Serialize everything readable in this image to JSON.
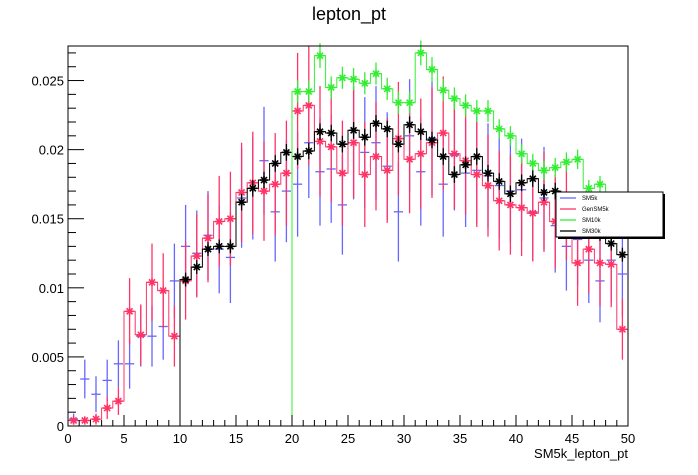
{
  "chart_data": {
    "type": "line",
    "title": "lepton_pt",
    "xlabel": "SM5k_lepton_pt",
    "ylabel": "",
    "xlim": [
      0,
      50
    ],
    "ylim": [
      0,
      0.0275
    ],
    "x_ticks": [
      0,
      5,
      10,
      15,
      20,
      25,
      30,
      35,
      40,
      45,
      50
    ],
    "y_ticks": [
      0,
      0.005,
      0.01,
      0.015,
      0.02,
      0.025
    ],
    "x_tick_labels": [
      "0",
      "5",
      "10",
      "15",
      "20",
      "25",
      "30",
      "35",
      "40",
      "45",
      "50"
    ],
    "y_tick_labels": [
      "0",
      "0.005",
      "0.01",
      "0.015",
      "0.02",
      "0.025"
    ],
    "grid": false,
    "legend": "right",
    "bin_width": 1,
    "series": [
      {
        "name": "SM5k",
        "color": "#6666ff",
        "style": "crosses",
        "values": [
          0.0005,
          0.0034,
          0.0023,
          0.0033,
          0.0045,
          0.0045,
          0.0065,
          0.0065,
          0.0072,
          0.0105,
          0.013,
          0.0125,
          0.0138,
          0.0128,
          0.0122,
          0.0165,
          0.0172,
          0.0192,
          0.0155,
          0.017,
          0.0175,
          0.0205,
          0.0184,
          0.0186,
          0.016,
          0.0205,
          0.0198,
          0.0205,
          0.0188,
          0.0155,
          0.021,
          0.0184,
          0.0208,
          0.0175,
          0.0196,
          0.0183,
          0.0185,
          0.0181,
          0.0174,
          0.017,
          0.0171,
          0.0155,
          0.0165,
          0.0145,
          0.013,
          0.0135,
          0.012,
          0.0105,
          0.012,
          0.011
        ],
        "errors": [
          0.0004,
          0.0014,
          0.0013,
          0.0015,
          0.0017,
          0.0018,
          0.0022,
          0.0022,
          0.0024,
          0.0027,
          0.003,
          0.0031,
          0.0032,
          0.0032,
          0.0033,
          0.0036,
          0.0037,
          0.0039,
          0.0036,
          0.0037,
          0.0038,
          0.004,
          0.0039,
          0.0039,
          0.0036,
          0.0041,
          0.004,
          0.0041,
          0.0039,
          0.0036,
          0.0041,
          0.0039,
          0.0041,
          0.0038,
          0.004,
          0.0039,
          0.0039,
          0.0038,
          0.0038,
          0.0037,
          0.0037,
          0.0035,
          0.0037,
          0.0034,
          0.0032,
          0.0033,
          0.0031,
          0.003,
          0.0031,
          0.003
        ]
      },
      {
        "name": "GenSM5k",
        "color": "#ff3366",
        "style": "stars",
        "values": [
          0.0004,
          0.0004,
          0.0005,
          0.0013,
          0.0018,
          0.0083,
          0.0066,
          0.0104,
          0.0098,
          0.0065,
          0.0105,
          0.0123,
          0.0136,
          0.0148,
          0.015,
          0.0169,
          0.0176,
          0.017,
          0.0175,
          0.0183,
          0.0228,
          0.0232,
          0.0206,
          0.0202,
          0.0183,
          0.0205,
          0.0182,
          0.0195,
          0.0185,
          0.0208,
          0.0193,
          0.0197,
          0.0205,
          0.0212,
          0.0197,
          0.0192,
          0.0182,
          0.0174,
          0.0163,
          0.016,
          0.0158,
          0.0154,
          0.0162,
          0.0148,
          0.0155,
          0.0118,
          0.0128,
          0.0118,
          0.0117,
          0.007
        ],
        "errors": [
          0.0003,
          0.0003,
          0.0004,
          0.0008,
          0.001,
          0.0024,
          0.0022,
          0.0028,
          0.0027,
          0.0022,
          0.0028,
          0.003,
          0.0032,
          0.0033,
          0.0034,
          0.0036,
          0.0037,
          0.0036,
          0.0037,
          0.0038,
          0.0042,
          0.0043,
          0.004,
          0.004,
          0.0038,
          0.004,
          0.0038,
          0.0039,
          0.0038,
          0.0041,
          0.0039,
          0.004,
          0.004,
          0.0041,
          0.004,
          0.0039,
          0.0038,
          0.0037,
          0.0036,
          0.0036,
          0.0035,
          0.0035,
          0.0036,
          0.0034,
          0.0035,
          0.0031,
          0.0032,
          0.0031,
          0.0031,
          0.0022
        ]
      },
      {
        "name": "SM10k",
        "color": "#33ee33",
        "style": "stars",
        "values": [
          0,
          0,
          0,
          0,
          0,
          0,
          0,
          0,
          0,
          0,
          0,
          0,
          0,
          0,
          0,
          0,
          0,
          0,
          0,
          0,
          0.0242,
          0.0242,
          0.0268,
          0.0245,
          0.0252,
          0.0251,
          0.0248,
          0.0255,
          0.0244,
          0.0234,
          0.0234,
          0.027,
          0.0258,
          0.0243,
          0.0237,
          0.0232,
          0.0228,
          0.0228,
          0.0215,
          0.021,
          0.0197,
          0.019,
          0.0185,
          0.0187,
          0.0191,
          0.0193,
          0.0172,
          0.0175,
          0.0156,
          0.0147
        ],
        "errors": [
          0,
          0,
          0,
          0,
          0,
          0,
          0,
          0,
          0,
          0,
          0,
          0,
          0,
          0,
          0,
          0,
          0,
          0,
          0,
          0,
          0.0008,
          0.0008,
          0.0009,
          0.0008,
          0.0008,
          0.0008,
          0.0008,
          0.0008,
          0.0008,
          0.0008,
          0.0008,
          0.0009,
          0.0009,
          0.0008,
          0.0008,
          0.0008,
          0.0008,
          0.0008,
          0.0007,
          0.0007,
          0.0007,
          0.0007,
          0.0007,
          0.0007,
          0.0007,
          0.0007,
          0.0006,
          0.0006,
          0.0006,
          0.0006
        ]
      },
      {
        "name": "SM30k",
        "color": "#000000",
        "style": "stars",
        "values": [
          0,
          0,
          0,
          0,
          0,
          0,
          0,
          0,
          0,
          0,
          0.0106,
          0.0115,
          0.0128,
          0.013,
          0.013,
          0.0162,
          0.0172,
          0.0178,
          0.019,
          0.0198,
          0.0195,
          0.0199,
          0.0213,
          0.0212,
          0.0204,
          0.0214,
          0.0209,
          0.0219,
          0.0215,
          0.0204,
          0.0218,
          0.0213,
          0.0207,
          0.0195,
          0.0182,
          0.0189,
          0.0195,
          0.0183,
          0.0177,
          0.0168,
          0.0176,
          0.0179,
          0.0169,
          0.017,
          0.0162,
          0.0155,
          0.0145,
          0.0139,
          0.0132,
          0.0124
        ],
        "errors": [
          0,
          0,
          0,
          0,
          0,
          0,
          0,
          0,
          0,
          0,
          0.0005,
          0.0005,
          0.0005,
          0.0005,
          0.0005,
          0.0006,
          0.0006,
          0.0006,
          0.0006,
          0.0006,
          0.0006,
          0.0006,
          0.0006,
          0.0006,
          0.0006,
          0.0006,
          0.0006,
          0.0006,
          0.0006,
          0.0006,
          0.0006,
          0.0006,
          0.0006,
          0.0006,
          0.0006,
          0.0006,
          0.0006,
          0.0006,
          0.0006,
          0.0006,
          0.0006,
          0.0006,
          0.0006,
          0.0006,
          0.0006,
          0.0005,
          0.0005,
          0.0005,
          0.0005,
          0.0005
        ]
      }
    ]
  }
}
